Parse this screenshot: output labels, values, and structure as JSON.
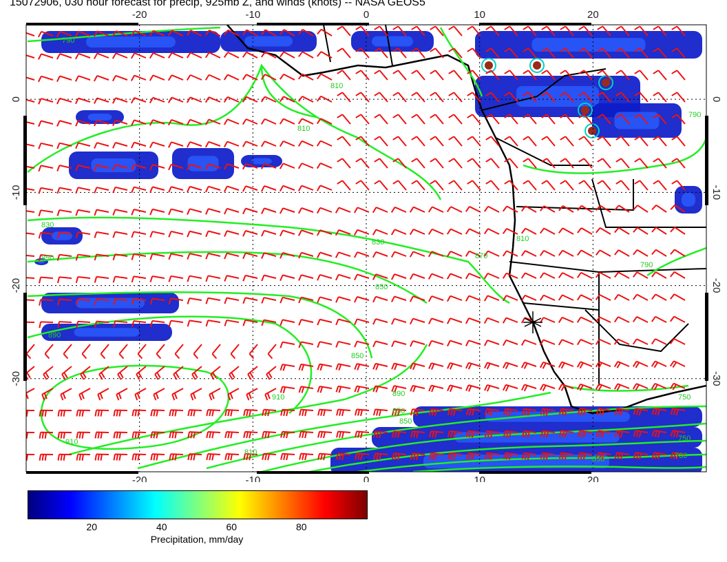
{
  "title": "15072906, 030 hour forecast for precip, 925mb Z, and winds (knots) -- NASA GEOS5",
  "map": {
    "lon_range": [
      -30,
      30
    ],
    "lat_range": [
      -40,
      8
    ],
    "x_ticks": [
      -20,
      -10,
      0,
      10,
      20
    ],
    "y_ticks": [
      0,
      -10,
      -20,
      -30
    ],
    "contour_color": "#22ee22",
    "barb_color": "#ee1111",
    "land_outline_color": "#000000",
    "contour_labels": [
      "790",
      "810",
      "810",
      "830",
      "830",
      "850",
      "850",
      "870",
      "890",
      "850",
      "910",
      "910",
      "890",
      "850",
      "810",
      "790",
      "750",
      "730",
      "750",
      "790",
      "810",
      "850",
      "850"
    ]
  },
  "colorbar": {
    "ticks": [
      "20",
      "40",
      "60",
      "80"
    ],
    "label": "Precipitation, mm/day",
    "colors": [
      "#00007f",
      "#0000ff",
      "#007fff",
      "#00ffff",
      "#7fff7f",
      "#ffff00",
      "#ff7f00",
      "#ff0000",
      "#7f0000"
    ]
  }
}
